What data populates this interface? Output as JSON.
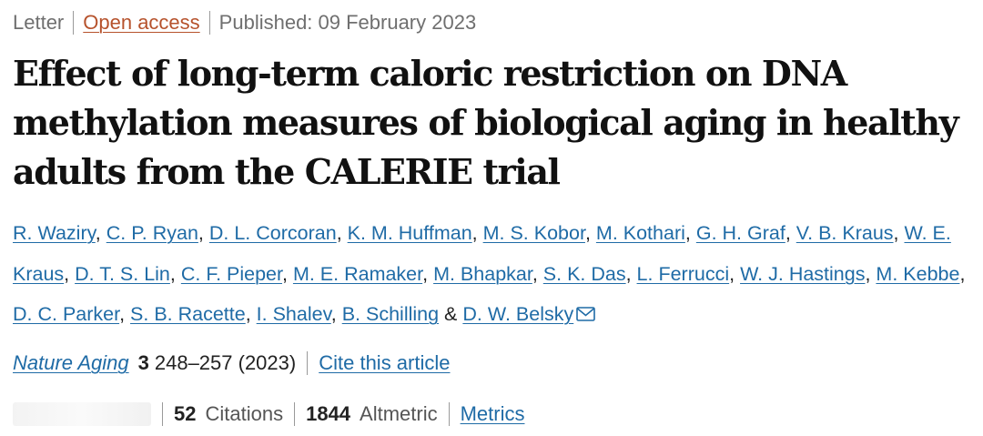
{
  "meta": {
    "type": "Letter",
    "access": "Open access",
    "published": "Published: 09 February 2023"
  },
  "title": "Effect of long-term caloric restriction on DNA methylation measures of biological aging in healthy adults from the CALERIE trial",
  "authors": [
    "R. Waziry",
    "C. P. Ryan",
    "D. L. Corcoran",
    "K. M. Huffman",
    "M. S. Kobor",
    "M. Kothari",
    "G. H. Graf",
    "V. B. Kraus",
    "W. E. Kraus",
    "D. T. S. Lin",
    "C. F. Pieper",
    "M. E. Ramaker",
    "M. Bhapkar",
    "S. K. Das",
    "L. Ferrucci",
    "W. J. Hastings",
    "M. Kebbe",
    "D. C. Parker",
    "S. B. Racette",
    "I. Shalev",
    "B. Schilling",
    "D. W. Belsky"
  ],
  "author_joiner": "&",
  "contact_icon": "mail-icon",
  "citation": {
    "journal": "Nature Aging",
    "volume": "3",
    "pages": "248–257 (2023)",
    "cite_link": "Cite this article"
  },
  "metrics": {
    "citations_count": "52",
    "citations_label": "Citations",
    "altmetric_count": "1844",
    "altmetric_label": "Altmetric",
    "metrics_link": "Metrics"
  },
  "colors": {
    "link": "#1f6ba6",
    "open_access": "#b6522c",
    "muted": "#6f6f6f",
    "title": "#111111"
  }
}
